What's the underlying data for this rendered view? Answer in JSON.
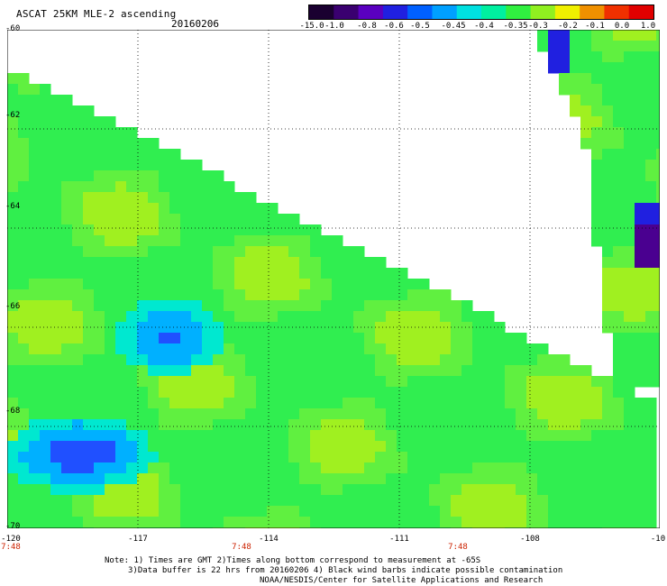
{
  "header": {
    "title": "ASCAT 25KM MLE-2 ascending",
    "date": "20160206"
  },
  "colorbar": {
    "labels": [
      "-15.0",
      "-1.0",
      "-0.8",
      "-0.6",
      "-0.5",
      "-0.45",
      "-0.4",
      "-0.35",
      "-0.3",
      "-0.2",
      "-0.1",
      "0.0",
      "1.0"
    ],
    "colors": [
      "#1a0030",
      "#3a0070",
      "#5a00c0",
      "#2020e0",
      "#0060ff",
      "#00a0ff",
      "#00e0e0",
      "#00f0a0",
      "#30f040",
      "#90f020",
      "#f0f000",
      "#f09000",
      "#f03000",
      "#e00000"
    ]
  },
  "map": {
    "lat_labels": [
      "-60",
      "-62",
      "-64",
      "-66",
      "-68",
      "-70"
    ],
    "lon_labels": [
      "-120",
      "-117",
      "-114",
      "-111",
      "-108",
      "-10"
    ],
    "time_labels": [
      "7:48",
      "7:48",
      "7:48"
    ],
    "no_data_color": "#ffffff"
  },
  "notes": {
    "line1": "Note: 1) Times are GMT 2)Times along bottom correspond to measurement at -65S",
    "line2": "3)Data buffer is 22 hrs from 20160206 4) Black wind barbs indicate possible contamination",
    "line3": "NOAA/NESDIS/Center for Satellite Applications and Research"
  }
}
